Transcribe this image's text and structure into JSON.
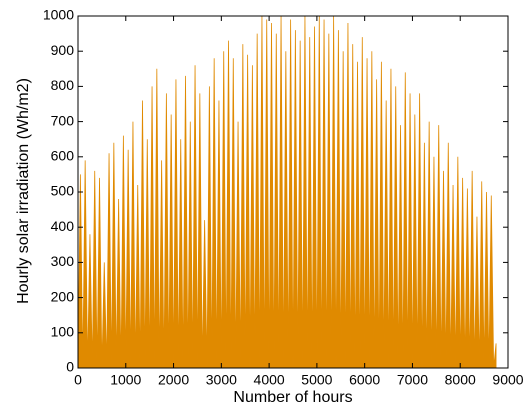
{
  "chart_data": {
    "type": "area",
    "xlabel": "Number of hours",
    "ylabel": "Hourly solar irradiation (Wh/m2)",
    "x": [
      0,
      50,
      100,
      150,
      200,
      250,
      300,
      350,
      400,
      450,
      500,
      550,
      600,
      650,
      700,
      750,
      800,
      850,
      900,
      950,
      1000,
      1050,
      1100,
      1150,
      1200,
      1250,
      1300,
      1350,
      1400,
      1450,
      1500,
      1550,
      1600,
      1650,
      1700,
      1750,
      1800,
      1850,
      1900,
      1950,
      2000,
      2050,
      2100,
      2150,
      2200,
      2250,
      2300,
      2350,
      2400,
      2450,
      2500,
      2550,
      2600,
      2650,
      2700,
      2750,
      2800,
      2850,
      2900,
      2950,
      3000,
      3050,
      3100,
      3150,
      3200,
      3250,
      3300,
      3350,
      3400,
      3450,
      3500,
      3550,
      3600,
      3650,
      3700,
      3750,
      3800,
      3850,
      3900,
      3950,
      4000,
      4050,
      4100,
      4150,
      4200,
      4250,
      4300,
      4350,
      4400,
      4450,
      4500,
      4550,
      4600,
      4650,
      4700,
      4750,
      4800,
      4850,
      4900,
      4950,
      5000,
      5050,
      5100,
      5150,
      5200,
      5250,
      5300,
      5350,
      5400,
      5450,
      5500,
      5550,
      5600,
      5650,
      5700,
      5750,
      5800,
      5850,
      5900,
      5950,
      6000,
      6050,
      6100,
      6150,
      6200,
      6250,
      6300,
      6350,
      6400,
      6450,
      6500,
      6550,
      6600,
      6650,
      6700,
      6750,
      6800,
      6850,
      6900,
      6950,
      7000,
      7050,
      7100,
      7150,
      7200,
      7250,
      7300,
      7350,
      7400,
      7450,
      7500,
      7550,
      7600,
      7650,
      7700,
      7750,
      7800,
      7850,
      7900,
      7950,
      8000,
      8050,
      8100,
      8150,
      8200,
      8250,
      8300,
      8350,
      8400,
      8450,
      8500,
      8550,
      8600,
      8650,
      8700,
      8750
    ],
    "series": [
      {
        "color": "#e08a00",
        "values": [
          0,
          550,
          0,
          590,
          0,
          380,
          0,
          560,
          0,
          540,
          0,
          300,
          0,
          610,
          0,
          640,
          0,
          480,
          0,
          660,
          0,
          620,
          0,
          700,
          0,
          520,
          0,
          760,
          0,
          650,
          0,
          800,
          0,
          850,
          0,
          590,
          0,
          780,
          0,
          720,
          0,
          820,
          0,
          650,
          0,
          830,
          0,
          700,
          0,
          860,
          0,
          780,
          0,
          420,
          0,
          800,
          0,
          880,
          0,
          760,
          0,
          900,
          0,
          930,
          0,
          880,
          0,
          700,
          0,
          920,
          0,
          890,
          0,
          860,
          0,
          950,
          0,
          1000,
          0,
          990,
          0,
          980,
          0,
          950,
          0,
          1000,
          0,
          900,
          0,
          990,
          0,
          960,
          0,
          930,
          0,
          1000,
          0,
          940,
          0,
          970,
          0,
          1000,
          0,
          990,
          0,
          950,
          0,
          1000,
          0,
          960,
          0,
          900,
          0,
          980,
          0,
          920,
          0,
          870,
          0,
          940,
          0,
          880,
          0,
          900,
          0,
          820,
          0,
          870,
          0,
          760,
          0,
          850,
          0,
          800,
          0,
          690,
          0,
          840,
          0,
          780,
          0,
          720,
          0,
          780,
          0,
          640,
          0,
          700,
          0,
          600,
          0,
          690,
          0,
          560,
          0,
          640,
          0,
          520,
          0,
          600,
          0,
          540,
          0,
          510,
          0,
          560,
          0,
          430,
          0,
          530,
          0,
          500,
          0,
          490,
          0,
          70
        ]
      }
    ],
    "xlim": [
      0,
      9000
    ],
    "xticks": [
      0,
      1000,
      2000,
      3000,
      4000,
      5000,
      6000,
      7000,
      8000,
      9000
    ],
    "ylim": [
      0,
      1000
    ],
    "yticks": [
      0,
      100,
      200,
      300,
      400,
      500,
      600,
      700,
      800,
      900,
      1000
    ],
    "grid": false
  }
}
